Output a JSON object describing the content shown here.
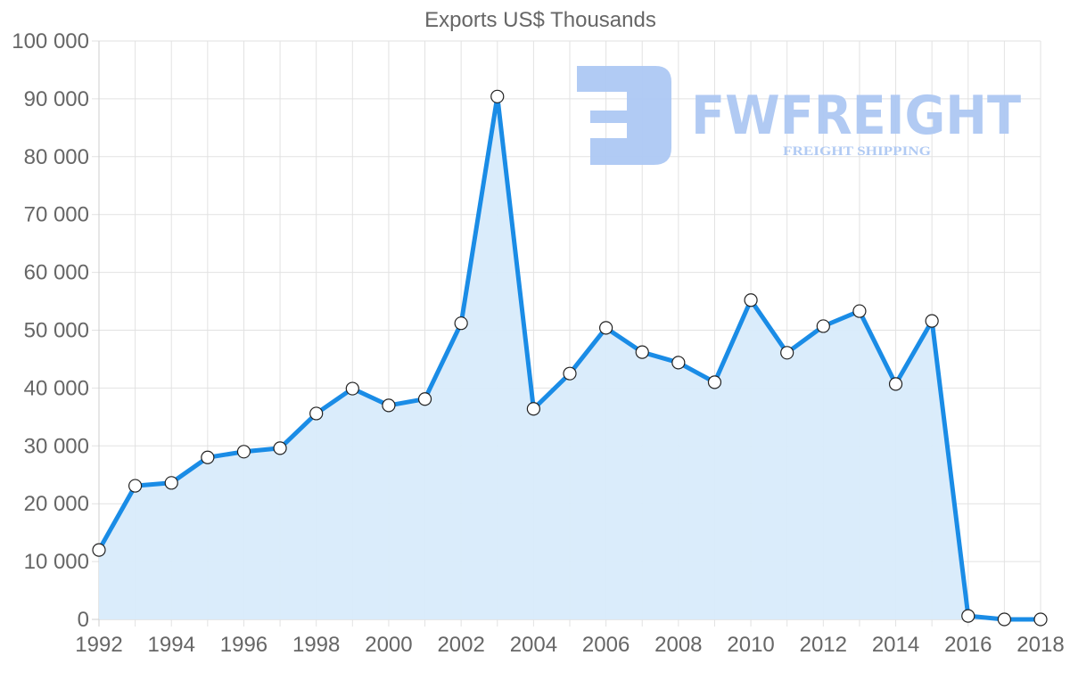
{
  "chart_data": {
    "type": "area",
    "title": "Exports US$ Thousands",
    "xlabel": "",
    "ylabel": "",
    "ylim": [
      0,
      100000
    ],
    "yticks": [
      "0",
      "10 000",
      "20 000",
      "30 000",
      "40 000",
      "50 000",
      "60 000",
      "70 000",
      "80 000",
      "90 000",
      "100 000"
    ],
    "xtick_labels": [
      "1992",
      "1994",
      "1996",
      "1998",
      "2000",
      "2002",
      "2004",
      "2006",
      "2008",
      "2010",
      "2012",
      "2014",
      "2016",
      "2018"
    ],
    "grid": true,
    "legend": null,
    "x": [
      1992,
      1993,
      1994,
      1995,
      1996,
      1997,
      1998,
      1999,
      2000,
      2001,
      2002,
      2003,
      2004,
      2005,
      2006,
      2007,
      2008,
      2009,
      2010,
      2011,
      2012,
      2013,
      2014,
      2015,
      2016,
      2017,
      2018
    ],
    "series": [
      {
        "name": "Exports US$ Thousands",
        "color": "#1a8ce6",
        "fill": "#d8ebfb",
        "values": [
          12000,
          23100,
          23600,
          28000,
          29000,
          29600,
          35600,
          39900,
          37000,
          38100,
          51200,
          90400,
          36400,
          42500,
          50400,
          46200,
          44400,
          41000,
          55200,
          46100,
          50700,
          53300,
          40700,
          51600,
          600,
          0,
          0
        ]
      }
    ]
  },
  "watermark": {
    "brand": "FWFREIGHT",
    "tagline": "FREIGHT SHIPPING",
    "color": "#adc8f3"
  }
}
